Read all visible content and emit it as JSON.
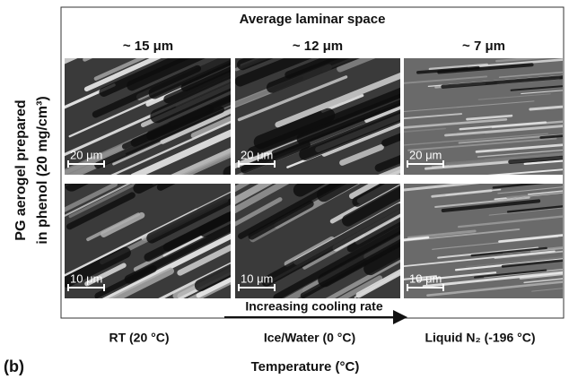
{
  "figure": {
    "header": "Average laminar space",
    "columns": [
      "~ 15 μm",
      "~ 12 μm",
      "~ 7 μm"
    ],
    "y_label": [
      "PG aerogel prepared",
      "in phenol (20 mg/cm³)"
    ],
    "scale_bars": [
      [
        "20 μm",
        "20 μm",
        "20 μm"
      ],
      [
        "10 μm",
        "10 μm",
        "10 μm"
      ]
    ],
    "arrow_label": "Increasing cooling rate",
    "conditions": [
      "RT (20 °C)",
      "Ice/Water (0 °C)",
      "Liquid N₂ (-196 °C)"
    ],
    "panel_label": "(b)",
    "x_label": "Temperature (°C)"
  }
}
